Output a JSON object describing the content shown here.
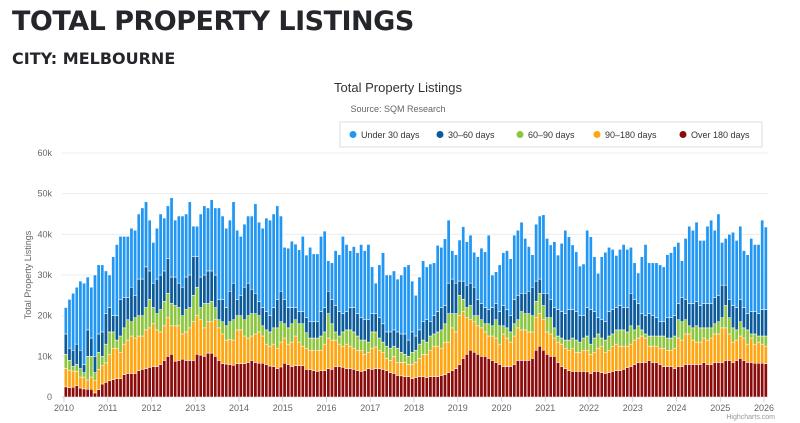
{
  "header": {
    "title": "TOTAL PROPERTY LISTINGS",
    "subtitle": "CITY: MELBOURNE"
  },
  "credit": "Highcharts.com",
  "chart_data": {
    "type": "bar",
    "stacking": "normal",
    "interval": "monthly",
    "title": "Total Property Listings",
    "subtitle": "Source: SQM Research",
    "ylabel": "Total Property Listings",
    "xlim": [
      "Jan 2010",
      "Jan 2026"
    ],
    "ylim": [
      0,
      60
    ],
    "x_ticks": [
      "2010",
      "2011",
      "2012",
      "2013",
      "2014",
      "2015",
      "2016",
      "2017",
      "2018",
      "2019",
      "2020",
      "2021",
      "2022",
      "2023",
      "2024",
      "2025",
      "2026"
    ],
    "y_ticks": [
      0,
      10,
      20,
      30,
      40,
      50,
      60
    ],
    "y_tick_labels": [
      "0",
      "10k",
      "20k",
      "30k",
      "40k",
      "50k",
      "60k"
    ],
    "grid": true,
    "legend_position": "top-right",
    "series": [
      {
        "name": "Under 30 days",
        "color": "#2196f3",
        "values": [
          6.5,
          12,
          14,
          14,
          17,
          20,
          13,
          12.5,
          20,
          17,
          16.5,
          10.5,
          8,
          14.5,
          17.5,
          15.5,
          15,
          15,
          14.5,
          16,
          16,
          17.5,
          16,
          12.5,
          10,
          12.5,
          15,
          13,
          13,
          19.5,
          14,
          16.5,
          17.5,
          15.5,
          18,
          7.5,
          7.5,
          15.5,
          17,
          15.5,
          17.5,
          16.5,
          22.5,
          20.5,
          19.5,
          17.5,
          20,
          17,
          14.5,
          15.5,
          16.5,
          18,
          22,
          19.5,
          19.5,
          23,
          23.5,
          23,
          23,
          18.5,
          12.8,
          14.6,
          16.3,
          15.6,
          15.2,
          18.5,
          15.4,
          18.3,
          16.7,
          16.7,
          18.5,
          18.8,
          7.5,
          9,
          13.5,
          14,
          19,
          16.5,
          14,
          15,
          15,
          18,
          17,
          18.5,
          11.5,
          7.5,
          13,
          17.5,
          14,
          14,
          14.5,
          13,
          14.5,
          16.5,
          18.5,
          12.5,
          10,
          13,
          15,
          13,
          14.2,
          13,
          16.3,
          14.8,
          16.4,
          15.5,
          7,
          7,
          10.1,
          13.4,
          10.7,
          11.8,
          8.6,
          10.5,
          13.6,
          13.7,
          18.3,
          8,
          7.8,
          11.5,
          13,
          14.5,
          14,
          15.8,
          16,
          17.5,
          13.5,
          11,
          8,
          14,
          15.5,
          19.3,
          13.5,
          13.4,
          16.2,
          13.4,
          16.8,
          20.5,
          17.9,
          15.9,
          14.7,
          12.2,
          12.7,
          19,
          17.9,
          13.5,
          10.9,
          15.5,
          17.1,
          15.8,
          14.8,
          12.8,
          13.8,
          15.5,
          14.3,
          11.3,
          9,
          7.5,
          14,
          17.5,
          12.5,
          13,
          13.5,
          14,
          13.5,
          15.5,
          16,
          17,
          15,
          9,
          15,
          19,
          18,
          19.5,
          16,
          15.5,
          19,
          20.5,
          16.5,
          20,
          10.5,
          11.5,
          16,
          18,
          16.5,
          18,
          14,
          14.5,
          18,
          16.5,
          17,
          22,
          20.3
        ]
      },
      {
        "name": "30–60 days",
        "color": "#0b5a9c",
        "values": [
          5,
          3,
          4,
          5,
          4.5,
          2,
          6.5,
          4.5,
          4,
          4.5,
          6,
          7.5,
          6,
          4,
          6,
          9,
          7.5,
          5.5,
          8.5,
          5.5,
          9,
          9,
          10,
          7,
          6,
          8.5,
          8.5,
          7.5,
          8.5,
          6.5,
          7,
          6,
          7,
          8,
          8,
          9.5,
          7.5,
          7.5,
          7,
          8,
          7.5,
          8,
          5,
          5.5,
          4.5,
          7.5,
          9,
          4,
          5,
          8,
          8,
          6,
          5,
          3.5,
          4.5,
          4.5,
          4,
          5,
          7,
          7.5,
          6,
          5,
          4,
          3,
          3,
          3,
          3.7,
          4,
          4,
          4,
          6,
          6,
          5.5,
          6,
          6.5,
          6,
          4.5,
          4.5,
          5.5,
          6,
          5.5,
          5.5,
          5,
          5.5,
          4.5,
          4.5,
          5,
          4.5,
          3.5,
          4,
          4,
          4,
          4.5,
          5,
          4,
          5,
          3.5,
          3.5,
          4.5,
          5.5,
          3.5,
          4.5,
          5,
          5.5,
          4.5,
          7.5,
          8.5,
          7.5,
          3.5,
          4.5,
          5.5,
          5.5,
          7,
          4,
          4,
          4,
          3.5,
          4.5,
          4,
          3.5,
          5,
          4.5,
          4,
          6,
          6,
          4.5,
          5,
          5.5,
          7,
          5,
          3.5,
          3,
          6,
          4.5,
          5,
          6.5,
          6.5,
          6.5,
          7.5,
          7,
          7,
          6.5,
          5.5,
          7,
          8.5,
          6.5,
          4,
          4.5,
          4.5,
          6,
          6,
          5.5,
          6,
          5.5,
          6,
          8,
          7.5,
          5.5,
          4,
          4.5,
          5.5,
          5,
          4.5,
          3.5,
          3.5,
          5,
          5,
          5,
          4,
          6,
          5,
          5.5,
          6,
          6,
          5.5,
          6,
          6,
          6,
          6.5,
          6.5,
          8,
          5,
          4.5,
          5.5,
          5.5,
          5.5,
          5,
          4,
          5.5,
          5.5,
          5.5,
          6.5,
          6.5
        ]
      },
      {
        "name": "60–90 days",
        "color": "#8cc63f",
        "values": [
          3.5,
          2.4,
          1.1,
          1.7,
          2.1,
          1.1,
          5.8,
          5.1,
          2,
          4.2,
          2.3,
          4.6,
          5.5,
          4,
          2,
          4,
          4,
          5,
          3.5,
          5,
          5,
          5,
          5.5,
          7,
          4,
          4,
          5.5,
          6,
          6,
          5.5,
          5,
          4.5,
          4.5,
          5.5,
          5,
          6.5,
          7,
          3,
          6,
          4.5,
          5,
          3,
          2,
          3,
          3.5,
          4.3,
          5,
          3.5,
          3.5,
          4,
          5.5,
          5.5,
          5,
          4,
          2.5,
          3.5,
          3.5,
          4,
          5,
          5,
          3.5,
          4,
          4.5,
          4,
          4.5,
          5.5,
          3.8,
          3,
          3,
          3,
          3.5,
          3,
          6,
          4,
          2,
          2,
          3.5,
          3.5,
          4,
          4,
          3.5,
          2.5,
          3.5,
          2.5,
          4,
          3.7,
          3,
          2.5,
          3,
          3,
          2.5,
          3.5,
          2.5,
          2,
          2,
          3,
          3,
          3.5,
          3.5,
          3,
          3.5,
          3,
          3.5,
          4.5,
          4.5,
          7,
          3.5,
          4.5,
          5,
          3,
          2.5,
          3.5,
          1.5,
          2.5,
          2,
          2,
          3,
          2.5,
          4.5,
          4.5,
          2,
          2.5,
          2.5,
          3,
          2,
          4.5,
          4,
          4.5,
          4,
          4,
          5,
          3.5,
          3.5,
          4,
          2.5,
          1.5,
          1.5,
          2,
          2.5,
          2.5,
          3,
          2.5,
          3,
          3.5,
          2.5,
          3.5,
          3.5,
          2,
          3,
          3.5,
          3,
          3.5,
          4,
          4,
          3.5,
          4.5,
          2.5,
          3,
          1.5,
          1,
          2.5,
          2.5,
          2.5,
          3,
          3,
          3,
          3,
          3,
          4.5,
          4.5,
          3.5,
          2,
          3,
          4,
          3.5,
          2.5,
          3,
          2.5,
          2.5,
          3,
          2.5,
          5.5,
          4,
          3.5,
          2.5,
          3.5,
          2.5,
          3.5,
          1,
          2.5,
          1.5,
          2,
          2.5
        ]
      },
      {
        "name": "90–180 days",
        "color": "#ffa510",
        "values": [
          4.5,
          4.3,
          4,
          3.5,
          2.7,
          2.9,
          2.3,
          3,
          3,
          5,
          4.5,
          4.8,
          6.5,
          7.7,
          7.5,
          6.5,
          7.5,
          8.2,
          9.2,
          8.7,
          8.5,
          8.2,
          9.5,
          9.7,
          10.5,
          9,
          8,
          8.5,
          9.5,
          7,
          8.7,
          8.5,
          6.2,
          7,
          8,
          9.5,
          9.5,
          8.7,
          7,
          7.7,
          7.7,
          9,
          8,
          7.3,
          5.9,
          6.2,
          6.2,
          8.3,
          8.3,
          6.8,
          6,
          6,
          7,
          7.7,
          6.7,
          5,
          4.9,
          5.5,
          5,
          6.1,
          6.2,
          5,
          6,
          7.3,
          5.8,
          4.8,
          5.2,
          4.8,
          5,
          5.2,
          5,
          6.5,
          7.5,
          7.2,
          6.5,
          5.5,
          5.2,
          6,
          5.5,
          5.2,
          5,
          5.2,
          4,
          4,
          5.2,
          5.3,
          4.5,
          4.2,
          3,
          3,
          4.2,
          3.2,
          3.3,
          3.5,
          3,
          3.5,
          3.7,
          4.5,
          5.5,
          5.7,
          6.5,
          7.5,
          7.5,
          6.7,
          8,
          7.5,
          10.5,
          9,
          12,
          11.5,
          9,
          7.5,
          7.5,
          7,
          7,
          6,
          5.5,
          6,
          6,
          5,
          8,
          7,
          6,
          7,
          8,
          7.5,
          7.5,
          7,
          6.5,
          8,
          8,
          7.5,
          5.5,
          5.5,
          4.5,
          5,
          5.5,
          5,
          5,
          5.7,
          4.7,
          4.7,
          5.2,
          5.3,
          4.7,
          4.7,
          5.7,
          6.5,
          5.2,
          5.5,
          6.2,
          6.5,
          6,
          5.7,
          5.3,
          5.5,
          6,
          6,
          6.5,
          6,
          3.5,
          4,
          4,
          4,
          4.5,
          4,
          4,
          5,
          7,
          6.5,
          7.5,
          7.5,
          6,
          5.5,
          5.5,
          6,
          6,
          6.5,
          7,
          7,
          8.5,
          8,
          6.5,
          5,
          5,
          5.5,
          5.5,
          4.5,
          6,
          4.7,
          5.2,
          4.7,
          4.3
        ]
      },
      {
        "name": "Over 180 days",
        "color": "#8b0a0a",
        "values": [
          2.5,
          2.3,
          2.4,
          2.8,
          2.2,
          2,
          1.9,
          1.9,
          1,
          1.8,
          3.2,
          3.6,
          4,
          4.3,
          4.5,
          4.5,
          5.5,
          5.8,
          5.8,
          5.8,
          6.5,
          6.8,
          7,
          7.3,
          7.5,
          7.5,
          8,
          9,
          10,
          10.5,
          8.8,
          9,
          9.3,
          9,
          9,
          9,
          10.5,
          10.3,
          10,
          10.8,
          10.8,
          10,
          9,
          8.2,
          8.1,
          8,
          7.8,
          8.2,
          8.2,
          8.2,
          8.5,
          9,
          8.5,
          8.3,
          8.3,
          8,
          7.6,
          7.5,
          7,
          7.4,
          8.3,
          8,
          7.5,
          7.7,
          7.7,
          7.7,
          6.8,
          6.7,
          6.5,
          6.3,
          6.5,
          6.5,
          7,
          6.8,
          7.5,
          7.5,
          7.3,
          7,
          7,
          6.8,
          6.5,
          6.3,
          6.5,
          7,
          6.8,
          7,
          7,
          6.8,
          6.5,
          6,
          5.8,
          5.3,
          5.2,
          5,
          5,
          4.5,
          4.8,
          5,
          5,
          4.8,
          5,
          5,
          5,
          5.3,
          5.5,
          6,
          6.5,
          7,
          8,
          9.5,
          10.5,
          11.5,
          11,
          10.5,
          10,
          10,
          9.5,
          9,
          8.5,
          8,
          7.5,
          7.5,
          7.5,
          8,
          9,
          9,
          9,
          9,
          9.5,
          11.5,
          12.5,
          11.5,
          10.5,
          10,
          10,
          8.5,
          7.5,
          7,
          6.5,
          6.3,
          6.3,
          6.3,
          6.3,
          6.2,
          5.8,
          6.3,
          6.3,
          6,
          5.8,
          6,
          6.3,
          6.5,
          6.5,
          6.8,
          7.2,
          7.5,
          8,
          8.5,
          8.5,
          8.5,
          9,
          8.5,
          8.5,
          8,
          7.5,
          7.5,
          7.5,
          7,
          7.5,
          7.5,
          8,
          8,
          8,
          8,
          8,
          8.5,
          8,
          8,
          8.5,
          8.5,
          8.5,
          9,
          9,
          8.5,
          9,
          9.5,
          9,
          8.5,
          8.5,
          8.3,
          8.3,
          8.3,
          8.2
        ]
      }
    ]
  }
}
